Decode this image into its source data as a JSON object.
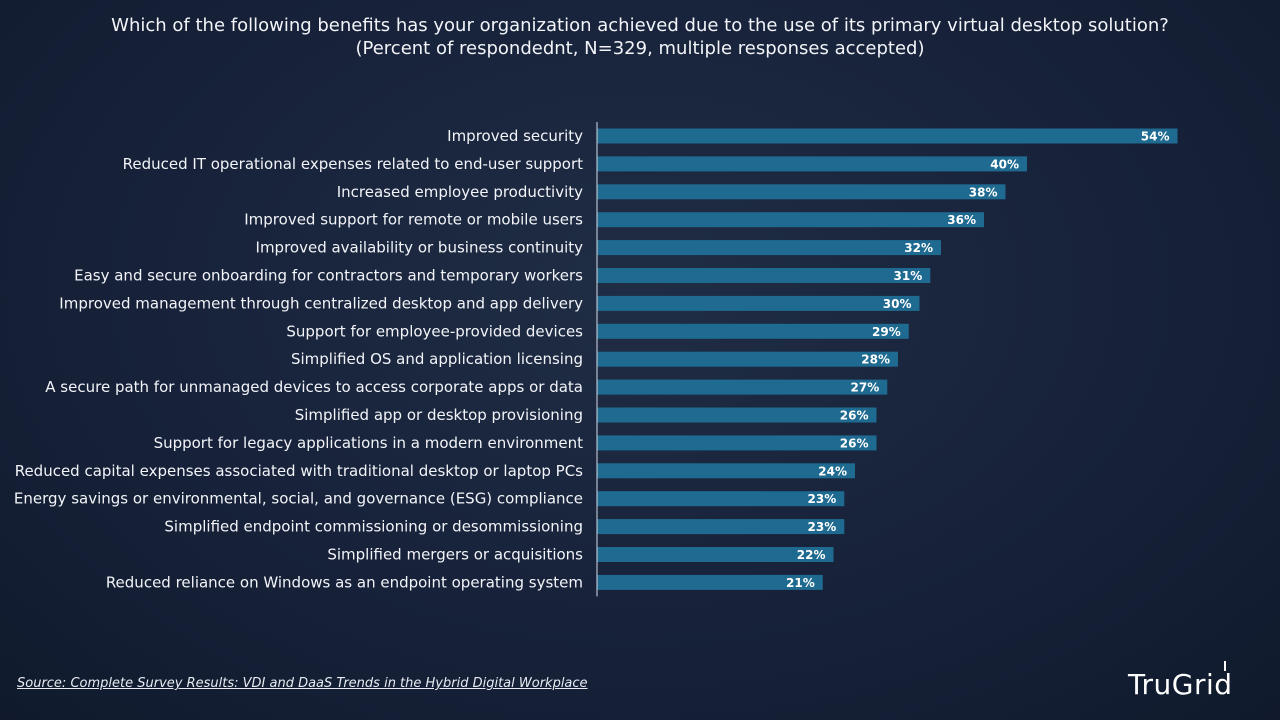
{
  "header": {
    "title_line1": "Which of the following benefits has your organization achieved due to the use of its primary virtual desktop solution?",
    "title_line2": "(Percent of respondednt, N=329, multiple responses accepted)"
  },
  "footer": {
    "source": "Source: Complete Survey Results: VDI and DaaS Trends in the Hybrid Digital Workplace",
    "brand": "TruGrid"
  },
  "colors": {
    "bar": "#1f6a91",
    "axis": "#d7dde6",
    "label": "#ffffff"
  },
  "chart_data": {
    "type": "bar",
    "orientation": "horizontal",
    "categories": [
      "Improved security",
      "Reduced IT operational expenses related to end-user support",
      "Increased employee productivity",
      "Improved support for remote or mobile users",
      "Improved availability or business continuity",
      "Easy and secure onboarding for contractors and temporary workers",
      "Improved management through centralized desktop and app delivery",
      "Support for employee-provided devices",
      "Simplified OS and application licensing",
      "A secure path for unmanaged devices to access corporate apps or data",
      "Simplified app or desktop provisioning",
      "Support for legacy applications in a modern environment",
      "Reduced capital expenses associated with traditional desktop or laptop PCs",
      "Energy savings or environmental, social, and governance (ESG) compliance",
      "Simplified endpoint commissioning or desommissioning",
      "Simplified mergers or acquisitions",
      "Reduced reliance on Windows as an endpoint operating system"
    ],
    "values": [
      54,
      40,
      38,
      36,
      32,
      31,
      30,
      29,
      28,
      27,
      26,
      26,
      24,
      23,
      23,
      22,
      21
    ],
    "data_labels": [
      "54%",
      "40%",
      "38%",
      "36%",
      "32%",
      "31%",
      "30%",
      "29%",
      "28%",
      "27%",
      "26%",
      "26%",
      "24%",
      "23%",
      "23%",
      "22%",
      "21%"
    ],
    "xlim": [
      0,
      60
    ],
    "grid": false,
    "legend": "none"
  }
}
